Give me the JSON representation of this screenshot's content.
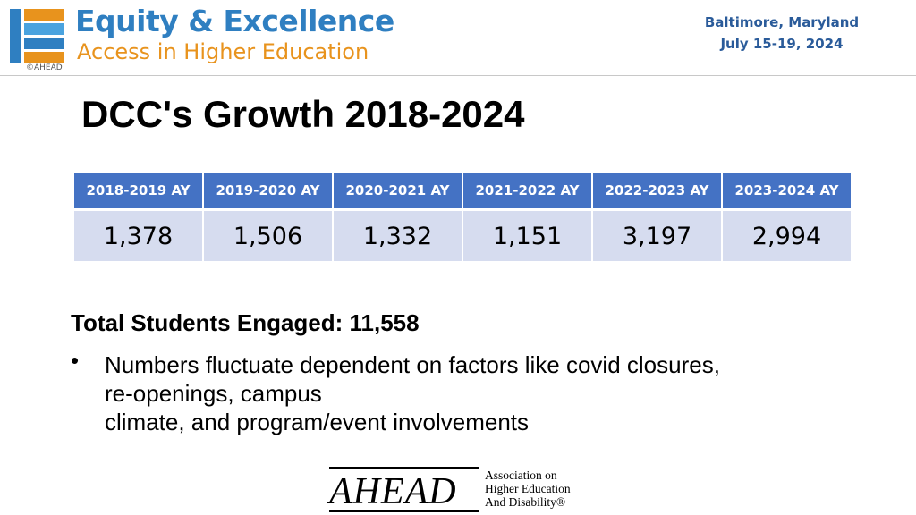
{
  "header": {
    "logo_copyright": "©AHEAD",
    "brand_title": "Equity & Excellence",
    "brand_subtitle": "Access in Higher Education",
    "event_location": "Baltimore, Maryland",
    "event_dates": "July 15-19, 2024",
    "colors": {
      "brand_blue": "#2f7fc1",
      "brand_orange": "#e8931d",
      "event_text": "#2a5b9a"
    }
  },
  "title": "DCC's Growth 2018-2024",
  "table": {
    "headers": [
      "2018-2019 AY",
      "2019-2020 AY",
      "2020-2021 AY",
      "2021-2022 AY",
      "2022-2023 AY",
      "2023-2024 AY"
    ],
    "values": [
      "1,378",
      "1,506",
      "1,332",
      "1,151",
      "3,197",
      "2,994"
    ],
    "colors": {
      "header_bg": "#4472c4",
      "cell_bg": "#d6dcef"
    }
  },
  "summary": {
    "heading": "Total Students Engaged: 11,558",
    "bullet_glyph": "•",
    "bullet_lines": [
      "Numbers fluctuate dependent on factors like covid closures,",
      "re-openings, campus",
      "climate, and program/event involvements"
    ]
  },
  "footer": {
    "wordmark": "AHEAD",
    "assoc_lines": [
      "Association on",
      "Higher Education",
      "And Disability®"
    ]
  }
}
